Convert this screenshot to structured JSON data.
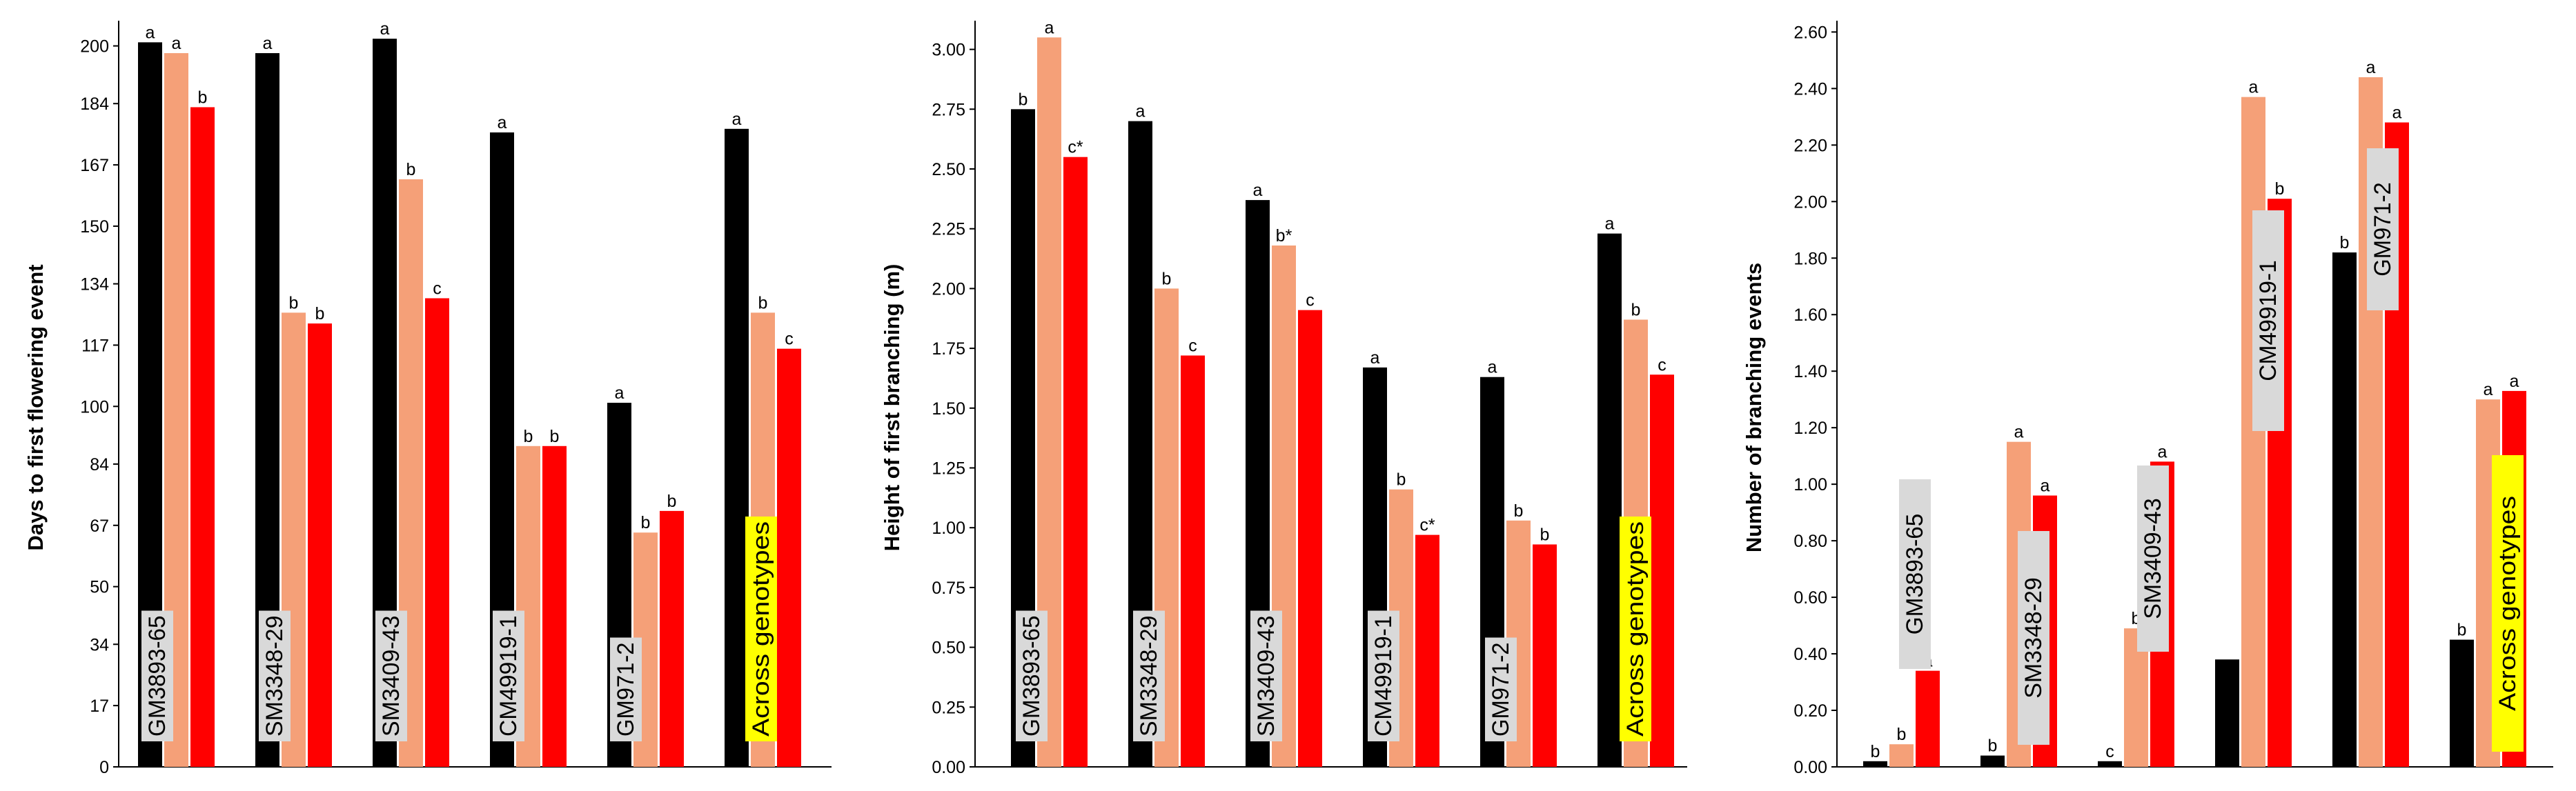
{
  "colors": {
    "series": [
      "#000000",
      "#f5a078",
      "#ff0000"
    ],
    "label_box": "#d9d9d9",
    "highlight_box": "#ffff00"
  },
  "chart_data": [
    {
      "type": "bar",
      "ylabel": "Days to first flowering event",
      "ylim": [
        0,
        207
      ],
      "yticks": [
        "0",
        "17",
        "34",
        "50",
        "67",
        "84",
        "100",
        "117",
        "134",
        "150",
        "167",
        "184",
        "200"
      ],
      "categories": [
        "GM3893-65",
        "SM3348-29",
        "SM3409-43",
        "CM49919-1",
        "GM971-2",
        "Across genotypes"
      ],
      "highlight_category": "Across genotypes",
      "series": [
        {
          "values": [
            201,
            198,
            202,
            176,
            101,
            177
          ],
          "letters": [
            "a",
            "a",
            "a",
            "a",
            "a",
            "a"
          ]
        },
        {
          "values": [
            198,
            126,
            163,
            89,
            65,
            126
          ],
          "letters": [
            "a",
            "b",
            "b",
            "b",
            "b",
            "b"
          ]
        },
        {
          "values": [
            183,
            123,
            130,
            89,
            71,
            116
          ],
          "letters": [
            "b",
            "b",
            "c",
            "b",
            "b",
            "c"
          ]
        }
      ]
    },
    {
      "type": "bar",
      "ylabel": "Height of first branching (m)",
      "ylim": [
        0,
        3.12
      ],
      "yticks": [
        "0.00",
        "0.25",
        "0.50",
        "0.75",
        "1.00",
        "1.25",
        "1.50",
        "1.75",
        "2.00",
        "2.25",
        "2.50",
        "2.75",
        "3.00"
      ],
      "categories": [
        "GM3893-65",
        "SM3348-29",
        "SM3409-43",
        "CM49919-1",
        "GM971-2",
        "Across genotypes"
      ],
      "highlight_category": "Across genotypes",
      "series": [
        {
          "values": [
            2.75,
            2.7,
            2.37,
            1.67,
            1.63,
            2.23
          ],
          "letters": [
            "b",
            "a",
            "a",
            "a",
            "a",
            "a"
          ]
        },
        {
          "values": [
            3.05,
            2.0,
            2.18,
            1.16,
            1.03,
            1.87
          ],
          "letters": [
            "a",
            "b",
            "b*",
            "b",
            "b",
            "b"
          ]
        },
        {
          "values": [
            2.55,
            1.72,
            1.91,
            0.97,
            0.93,
            1.64
          ],
          "letters": [
            "c*",
            "c",
            "c",
            "c*",
            "b",
            "c"
          ]
        }
      ]
    },
    {
      "type": "bar",
      "ylabel": "Number of branching events",
      "ylim": [
        0,
        2.64
      ],
      "yticks": [
        "0.00",
        "0.20",
        "0.40",
        "0.60",
        "0.80",
        "1.00",
        "1.20",
        "1.40",
        "1.60",
        "1.80",
        "2.00",
        "2.20",
        "2.40",
        "2.60"
      ],
      "categories": [
        "GM3893-65",
        "SM3348-29",
        "SM3409-43",
        "CM49919-1",
        "GM971-2",
        "Across genotypes"
      ],
      "highlight_category": "Across genotypes",
      "series": [
        {
          "values": [
            0.02,
            0.04,
            0.02,
            0.38,
            1.82,
            0.45
          ],
          "letters": [
            "b",
            "b",
            "c",
            "",
            "b",
            "b"
          ]
        },
        {
          "values": [
            0.08,
            1.15,
            0.49,
            2.37,
            2.44,
            1.3
          ],
          "letters": [
            "b",
            "a",
            "b",
            "a",
            "a",
            "a"
          ]
        },
        {
          "values": [
            0.34,
            0.96,
            1.08,
            2.01,
            2.28,
            1.33
          ],
          "letters": [
            "a",
            "a",
            "a",
            "b",
            "a",
            "a"
          ]
        }
      ]
    }
  ]
}
